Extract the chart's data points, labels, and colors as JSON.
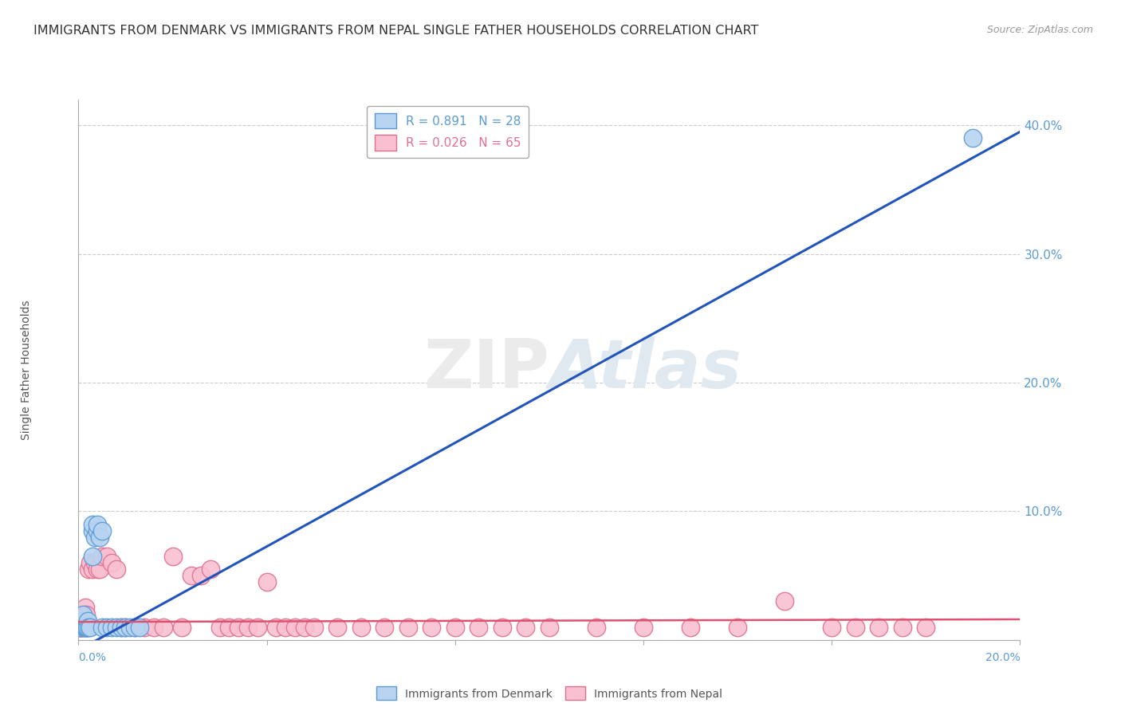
{
  "title": "IMMIGRANTS FROM DENMARK VS IMMIGRANTS FROM NEPAL SINGLE FATHER HOUSEHOLDS CORRELATION CHART",
  "source": "Source: ZipAtlas.com",
  "ylabel": "Single Father Households",
  "watermark": "ZIPAtlas",
  "denmark": {
    "R": 0.891,
    "N": 28,
    "color": "#b8d4f0",
    "edge_color": "#5b9bd5",
    "line_color": "#2255bb",
    "label": "Immigrants from Denmark",
    "x": [
      0.0005,
      0.001,
      0.001,
      0.0013,
      0.0014,
      0.0016,
      0.0018,
      0.002,
      0.0022,
      0.0025,
      0.003,
      0.003,
      0.003,
      0.0035,
      0.004,
      0.004,
      0.0045,
      0.005,
      0.005,
      0.006,
      0.007,
      0.008,
      0.009,
      0.01,
      0.011,
      0.012,
      0.013,
      0.19
    ],
    "y": [
      0.01,
      0.015,
      0.02,
      0.01,
      0.01,
      0.01,
      0.01,
      0.015,
      0.01,
      0.01,
      0.085,
      0.09,
      0.065,
      0.08,
      0.085,
      0.09,
      0.08,
      0.085,
      0.01,
      0.01,
      0.01,
      0.01,
      0.01,
      0.01,
      0.01,
      0.01,
      0.01,
      0.39
    ]
  },
  "nepal": {
    "R": 0.026,
    "N": 65,
    "color": "#f8c0d0",
    "edge_color": "#e07090",
    "line_color": "#e05070",
    "label": "Immigrants from Nepal",
    "x": [
      0.0002,
      0.0003,
      0.0004,
      0.0005,
      0.0006,
      0.0007,
      0.0008,
      0.001,
      0.0012,
      0.0014,
      0.0015,
      0.0016,
      0.002,
      0.0022,
      0.0025,
      0.003,
      0.0035,
      0.004,
      0.0045,
      0.005,
      0.006,
      0.007,
      0.008,
      0.009,
      0.01,
      0.012,
      0.014,
      0.016,
      0.018,
      0.02,
      0.022,
      0.024,
      0.026,
      0.028,
      0.03,
      0.032,
      0.034,
      0.036,
      0.038,
      0.04,
      0.042,
      0.044,
      0.046,
      0.048,
      0.05,
      0.055,
      0.06,
      0.065,
      0.07,
      0.075,
      0.08,
      0.085,
      0.09,
      0.095,
      0.1,
      0.11,
      0.12,
      0.13,
      0.14,
      0.15,
      0.16,
      0.165,
      0.17,
      0.175,
      0.18
    ],
    "y": [
      0.01,
      0.01,
      0.01,
      0.015,
      0.01,
      0.01,
      0.01,
      0.01,
      0.015,
      0.01,
      0.025,
      0.02,
      0.01,
      0.055,
      0.06,
      0.055,
      0.06,
      0.055,
      0.055,
      0.065,
      0.065,
      0.06,
      0.055,
      0.01,
      0.01,
      0.01,
      0.01,
      0.01,
      0.01,
      0.065,
      0.01,
      0.05,
      0.05,
      0.055,
      0.01,
      0.01,
      0.01,
      0.01,
      0.01,
      0.045,
      0.01,
      0.01,
      0.01,
      0.01,
      0.01,
      0.01,
      0.01,
      0.01,
      0.01,
      0.01,
      0.01,
      0.01,
      0.01,
      0.01,
      0.01,
      0.01,
      0.01,
      0.01,
      0.01,
      0.03,
      0.01,
      0.01,
      0.01,
      0.01,
      0.01
    ]
  },
  "xlim": [
    0.0,
    0.2
  ],
  "ylim": [
    0.0,
    0.42
  ],
  "ytick_vals": [
    0.0,
    0.1,
    0.2,
    0.3,
    0.4
  ],
  "ytick_labels": [
    "",
    "10.0%",
    "20.0%",
    "30.0%",
    "40.0%"
  ],
  "background_color": "#ffffff",
  "grid_color": "#cccccc",
  "title_fontsize": 11.5,
  "source_fontsize": 9
}
